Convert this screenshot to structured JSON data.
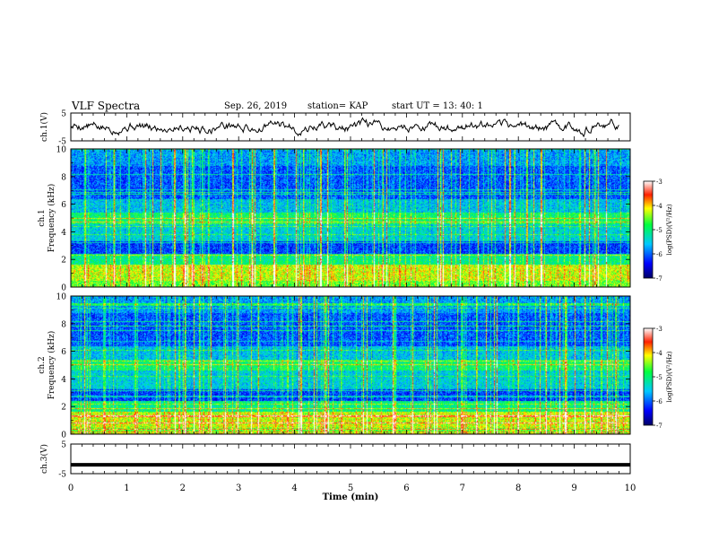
{
  "header": {
    "title": "VLF Spectra",
    "date": "Sep. 26, 2019",
    "station": "station= KAP",
    "start": "start  UT  =   13: 40: 1"
  },
  "chart_data": [
    {
      "type": "line",
      "panel": "ch1-waveform",
      "ylabel": "ch.1(V)",
      "ylim": [
        -5,
        5
      ],
      "yticks": [
        "5",
        "-5"
      ],
      "x_range_min": [
        0,
        9.8
      ],
      "color": "#000000"
    },
    {
      "type": "heatmap",
      "panel": "ch1-spectrogram",
      "ylabel_line1": "ch.1",
      "ylabel_line2": "Frequency  (kHz)",
      "ylim": [
        0,
        10
      ],
      "yticks": [
        "0",
        "2",
        "4",
        "6",
        "8",
        "10"
      ],
      "colorbar": {
        "label": "log(PSD)(V²/Hz)",
        "range": [
          -7,
          -3
        ],
        "ticks": [
          "-3",
          "-4",
          "-5",
          "-6",
          "-7"
        ]
      }
    },
    {
      "type": "heatmap",
      "panel": "ch2-spectrogram",
      "ylabel_line1": "ch.2",
      "ylabel_line2": "Frequency  (kHz)",
      "ylim": [
        0,
        10
      ],
      "yticks": [
        "0",
        "2",
        "4",
        "6",
        "8",
        "10"
      ],
      "colorbar": {
        "label": "log(PSD)(V²/Hz)",
        "range": [
          -7,
          -3
        ],
        "ticks": [
          "-3",
          "-4",
          "-5",
          "-6",
          "-7"
        ]
      }
    },
    {
      "type": "line",
      "panel": "ch3-waveform",
      "ylabel": "ch.3(V)",
      "ylim": [
        -5,
        5
      ],
      "yticks": [
        "5",
        "-5"
      ],
      "constant_value": -2,
      "color": "#000000"
    }
  ],
  "xaxis": {
    "label": "Time  (min)",
    "range": [
      0,
      10
    ],
    "ticks": [
      "0",
      "1",
      "2",
      "3",
      "4",
      "5",
      "6",
      "7",
      "8",
      "9",
      "10"
    ]
  }
}
